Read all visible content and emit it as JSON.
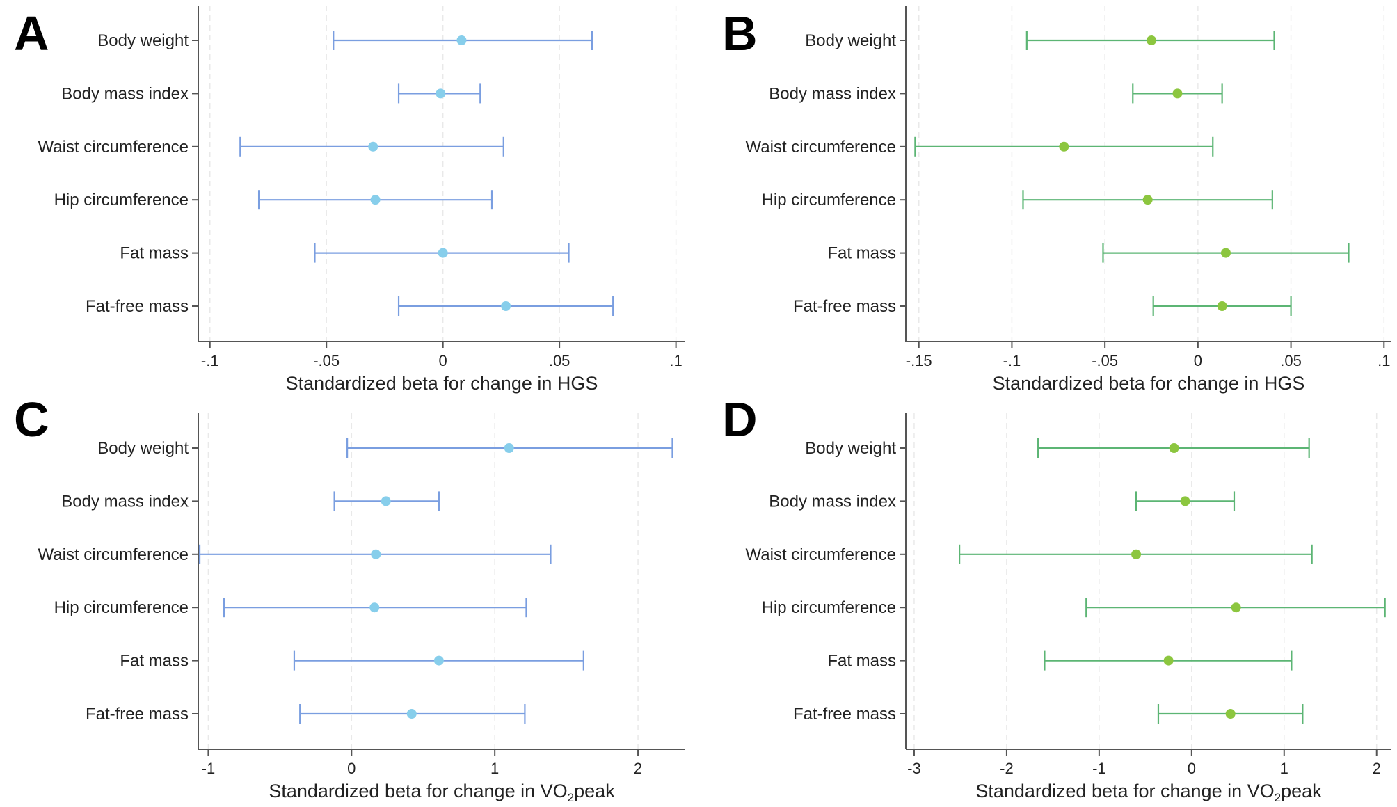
{
  "chart_data": [
    {
      "panel": "A",
      "type": "forest",
      "categories": [
        "Body weight",
        "Body mass index",
        "Waist circumference",
        "Hip circumference",
        "Fat mass",
        "Fat-free mass"
      ],
      "estimates": [
        0.008,
        -0.001,
        -0.03,
        -0.029,
        0.0,
        0.027
      ],
      "ci_lower": [
        -0.047,
        -0.019,
        -0.087,
        -0.079,
        -0.055,
        -0.019
      ],
      "ci_upper": [
        0.064,
        0.016,
        0.026,
        0.021,
        0.054,
        0.073
      ],
      "xlim": [
        -0.105,
        0.104
      ],
      "xticks": [
        -0.1,
        -0.05,
        0,
        0.05,
        0.1
      ],
      "xtick_labels": [
        "-.1",
        "-.05",
        "0",
        ".05",
        ".1"
      ],
      "xlabel_main": "Standardized beta for change in HGS",
      "xlabel_sub": "",
      "xlabel_tail": "",
      "marker_color": "#87ceeb",
      "line_color": "#7a9ee0"
    },
    {
      "panel": "B",
      "type": "forest",
      "categories": [
        "Body weight",
        "Body mass index",
        "Waist circumference",
        "Hip circumference",
        "Fat mass",
        "Fat-free mass"
      ],
      "estimates": [
        -0.025,
        -0.011,
        -0.072,
        -0.027,
        0.015,
        0.013
      ],
      "ci_lower": [
        -0.092,
        -0.035,
        -0.152,
        -0.094,
        -0.051,
        -0.024
      ],
      "ci_upper": [
        0.041,
        0.013,
        0.008,
        0.04,
        0.081,
        0.05
      ],
      "xlim": [
        -0.157,
        0.104
      ],
      "xticks": [
        -0.15,
        -0.1,
        -0.05,
        0,
        0.05,
        0.1
      ],
      "xtick_labels": [
        "-.15",
        "-.1",
        "-.05",
        "0",
        ".05",
        ".1"
      ],
      "xlabel_main": "Standardized beta for change in HGS",
      "xlabel_sub": "",
      "xlabel_tail": "",
      "marker_color": "#8cc63f",
      "line_color": "#5cb574"
    },
    {
      "panel": "C",
      "type": "forest",
      "categories": [
        "Body weight",
        "Body mass index",
        "Waist circumference",
        "Hip circumference",
        "Fat mass",
        "Fat-free mass"
      ],
      "estimates": [
        1.1,
        0.24,
        0.17,
        0.16,
        0.61,
        0.42
      ],
      "ci_lower": [
        -0.03,
        -0.12,
        -1.06,
        -0.89,
        -0.4,
        -0.36
      ],
      "ci_upper": [
        2.24,
        0.61,
        1.39,
        1.22,
        1.62,
        1.21
      ],
      "xlim": [
        -1.07,
        2.33
      ],
      "xticks": [
        -1,
        0,
        1,
        2
      ],
      "xtick_labels": [
        "-1",
        "0",
        "1",
        "2"
      ],
      "xlabel_main": "Standardized beta for change in VO",
      "xlabel_sub": "2",
      "xlabel_tail": "peak",
      "marker_color": "#87ceeb",
      "line_color": "#7a9ee0"
    },
    {
      "panel": "D",
      "type": "forest",
      "categories": [
        "Body weight",
        "Body mass index",
        "Waist circumference",
        "Hip circumference",
        "Fat mass",
        "Fat-free mass"
      ],
      "estimates": [
        -0.19,
        -0.07,
        -0.6,
        0.48,
        -0.25,
        0.42
      ],
      "ci_lower": [
        -1.66,
        -0.6,
        -2.51,
        -1.14,
        -1.59,
        -0.36
      ],
      "ci_upper": [
        1.27,
        0.46,
        1.3,
        2.09,
        1.08,
        1.2
      ],
      "xlim": [
        -3.09,
        2.16
      ],
      "xticks": [
        -3,
        -2,
        -1,
        0,
        1,
        2
      ],
      "xtick_labels": [
        "-3",
        "-2",
        "-1",
        "0",
        "1",
        "2"
      ],
      "xlabel_main": "Standardized beta for change in VO",
      "xlabel_sub": "2",
      "xlabel_tail": "peak",
      "marker_color": "#8cc63f",
      "line_color": "#5cb574"
    }
  ]
}
